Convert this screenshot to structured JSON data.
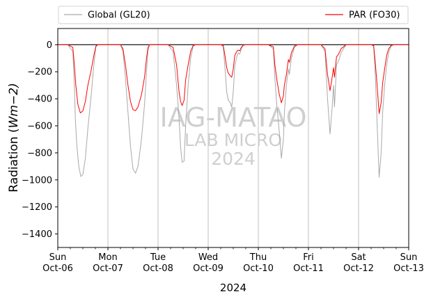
{
  "chart_data": {
    "type": "line",
    "xlabel": "2024",
    "ylabel_main": "Radiation (",
    "ylabel_unit_italic": "Wm",
    "ylabel_unit_rest": "−2)",
    "ylim": [
      -1500,
      120
    ],
    "yticks": [
      0,
      -200,
      -400,
      -600,
      -800,
      -1000,
      -1200,
      -1400
    ],
    "ytick_labels": [
      "0",
      "−200",
      "−400",
      "−600",
      "−800",
      "−1000",
      "−1200",
      "−1400"
    ],
    "xlim": [
      0,
      7
    ],
    "xticks": [
      0,
      1,
      2,
      3,
      4,
      5,
      6,
      7
    ],
    "xtick_labels_day": [
      "Sun",
      "Mon",
      "Tue",
      "Wed",
      "Thu",
      "Fri",
      "Sat",
      "Sun"
    ],
    "xtick_labels_date": [
      "Oct-06",
      "Oct-07",
      "Oct-08",
      "Oct-09",
      "Oct-10",
      "Oct-11",
      "Oct-12",
      "Oct-13"
    ],
    "x_unit": "days",
    "grid": "vertical at day ticks",
    "zero_line": true,
    "legend_placement": "top, outside plot",
    "watermark": [
      "IAG-MATAO",
      "LAB MICRO",
      "2024"
    ],
    "series": [
      {
        "name": "Global (GL20)",
        "color": "#a9a9a9",
        "points": [
          [
            0.0,
            0
          ],
          [
            0.2,
            0
          ],
          [
            0.3,
            -50
          ],
          [
            0.33,
            -300
          ],
          [
            0.35,
            -550
          ],
          [
            0.38,
            -750
          ],
          [
            0.42,
            -900
          ],
          [
            0.46,
            -975
          ],
          [
            0.5,
            -960
          ],
          [
            0.55,
            -840
          ],
          [
            0.6,
            -620
          ],
          [
            0.66,
            -400
          ],
          [
            0.72,
            -150
          ],
          [
            0.76,
            -15
          ],
          [
            0.8,
            0
          ],
          [
            1.25,
            0
          ],
          [
            1.3,
            -50
          ],
          [
            1.35,
            -250
          ],
          [
            1.4,
            -500
          ],
          [
            1.45,
            -750
          ],
          [
            1.5,
            -920
          ],
          [
            1.55,
            -950
          ],
          [
            1.6,
            -900
          ],
          [
            1.67,
            -700
          ],
          [
            1.73,
            -440
          ],
          [
            1.77,
            -200
          ],
          [
            1.8,
            -40
          ],
          [
            1.83,
            0
          ],
          [
            2.2,
            0
          ],
          [
            2.3,
            -50
          ],
          [
            2.37,
            -300
          ],
          [
            2.42,
            -550
          ],
          [
            2.45,
            -760
          ],
          [
            2.48,
            -870
          ],
          [
            2.52,
            -860
          ],
          [
            2.55,
            -600
          ],
          [
            2.6,
            -300
          ],
          [
            2.65,
            -100
          ],
          [
            2.7,
            -10
          ],
          [
            2.75,
            0
          ],
          [
            3.25,
            0
          ],
          [
            3.3,
            -15
          ],
          [
            3.33,
            -150
          ],
          [
            3.37,
            -350
          ],
          [
            3.4,
            -410
          ],
          [
            3.44,
            -430
          ],
          [
            3.47,
            -460
          ],
          [
            3.5,
            -350
          ],
          [
            3.53,
            -160
          ],
          [
            3.57,
            -90
          ],
          [
            3.6,
            -60
          ],
          [
            3.63,
            -70
          ],
          [
            3.66,
            -30
          ],
          [
            3.7,
            -5
          ],
          [
            3.75,
            0
          ],
          [
            4.2,
            0
          ],
          [
            4.3,
            -30
          ],
          [
            4.33,
            -250
          ],
          [
            4.37,
            -450
          ],
          [
            4.42,
            -650
          ],
          [
            4.46,
            -840
          ],
          [
            4.5,
            -700
          ],
          [
            4.52,
            -500
          ],
          [
            4.56,
            -300
          ],
          [
            4.6,
            -180
          ],
          [
            4.62,
            -220
          ],
          [
            4.66,
            -100
          ],
          [
            4.72,
            -20
          ],
          [
            4.78,
            0
          ],
          [
            5.25,
            0
          ],
          [
            5.33,
            -50
          ],
          [
            5.38,
            -400
          ],
          [
            5.43,
            -660
          ],
          [
            5.47,
            -480
          ],
          [
            5.5,
            -300
          ],
          [
            5.52,
            -460
          ],
          [
            5.56,
            -150
          ],
          [
            5.6,
            -120
          ],
          [
            5.65,
            -60
          ],
          [
            5.7,
            -30
          ],
          [
            5.75,
            0
          ],
          [
            6.25,
            0
          ],
          [
            6.3,
            -10
          ],
          [
            6.33,
            -200
          ],
          [
            6.37,
            -580
          ],
          [
            6.41,
            -980
          ],
          [
            6.45,
            -800
          ],
          [
            6.48,
            -500
          ],
          [
            6.52,
            -300
          ],
          [
            6.56,
            -150
          ],
          [
            6.6,
            -60
          ],
          [
            6.65,
            -10
          ],
          [
            6.7,
            0
          ],
          [
            7.0,
            0
          ]
        ]
      },
      {
        "name": "PAR (FO30)",
        "color": "#ff0000",
        "points": [
          [
            0.0,
            0
          ],
          [
            0.2,
            0
          ],
          [
            0.3,
            -20
          ],
          [
            0.33,
            -150
          ],
          [
            0.36,
            -300
          ],
          [
            0.4,
            -440
          ],
          [
            0.45,
            -505
          ],
          [
            0.5,
            -490
          ],
          [
            0.55,
            -420
          ],
          [
            0.6,
            -300
          ],
          [
            0.66,
            -200
          ],
          [
            0.72,
            -80
          ],
          [
            0.76,
            -10
          ],
          [
            0.8,
            0
          ],
          [
            1.25,
            0
          ],
          [
            1.3,
            -30
          ],
          [
            1.35,
            -150
          ],
          [
            1.4,
            -300
          ],
          [
            1.45,
            -420
          ],
          [
            1.5,
            -480
          ],
          [
            1.55,
            -488
          ],
          [
            1.6,
            -460
          ],
          [
            1.67,
            -370
          ],
          [
            1.73,
            -240
          ],
          [
            1.77,
            -100
          ],
          [
            1.8,
            -20
          ],
          [
            1.83,
            0
          ],
          [
            2.2,
            0
          ],
          [
            2.3,
            -20
          ],
          [
            2.37,
            -150
          ],
          [
            2.42,
            -350
          ],
          [
            2.45,
            -420
          ],
          [
            2.48,
            -450
          ],
          [
            2.52,
            -410
          ],
          [
            2.55,
            -260
          ],
          [
            2.6,
            -150
          ],
          [
            2.65,
            -50
          ],
          [
            2.7,
            -5
          ],
          [
            2.75,
            0
          ],
          [
            3.25,
            0
          ],
          [
            3.3,
            -5
          ],
          [
            3.33,
            -70
          ],
          [
            3.37,
            -170
          ],
          [
            3.4,
            -210
          ],
          [
            3.44,
            -230
          ],
          [
            3.47,
            -240
          ],
          [
            3.5,
            -180
          ],
          [
            3.53,
            -80
          ],
          [
            3.57,
            -50
          ],
          [
            3.6,
            -40
          ],
          [
            3.63,
            -45
          ],
          [
            3.66,
            -20
          ],
          [
            3.7,
            -3
          ],
          [
            3.75,
            0
          ],
          [
            4.2,
            0
          ],
          [
            4.3,
            -15
          ],
          [
            4.33,
            -150
          ],
          [
            4.37,
            -260
          ],
          [
            4.42,
            -370
          ],
          [
            4.46,
            -430
          ],
          [
            4.5,
            -380
          ],
          [
            4.52,
            -300
          ],
          [
            4.56,
            -220
          ],
          [
            4.6,
            -110
          ],
          [
            4.62,
            -130
          ],
          [
            4.66,
            -60
          ],
          [
            4.72,
            -10
          ],
          [
            4.78,
            0
          ],
          [
            5.25,
            0
          ],
          [
            5.33,
            -30
          ],
          [
            5.38,
            -220
          ],
          [
            5.43,
            -340
          ],
          [
            5.47,
            -250
          ],
          [
            5.5,
            -170
          ],
          [
            5.52,
            -240
          ],
          [
            5.56,
            -90
          ],
          [
            5.6,
            -70
          ],
          [
            5.65,
            -30
          ],
          [
            5.7,
            -15
          ],
          [
            5.75,
            0
          ],
          [
            6.25,
            0
          ],
          [
            6.3,
            -5
          ],
          [
            6.33,
            -120
          ],
          [
            6.37,
            -300
          ],
          [
            6.41,
            -510
          ],
          [
            6.45,
            -430
          ],
          [
            6.48,
            -280
          ],
          [
            6.52,
            -180
          ],
          [
            6.56,
            -80
          ],
          [
            6.6,
            -30
          ],
          [
            6.65,
            -5
          ],
          [
            6.7,
            0
          ],
          [
            7.0,
            0
          ]
        ]
      }
    ]
  }
}
